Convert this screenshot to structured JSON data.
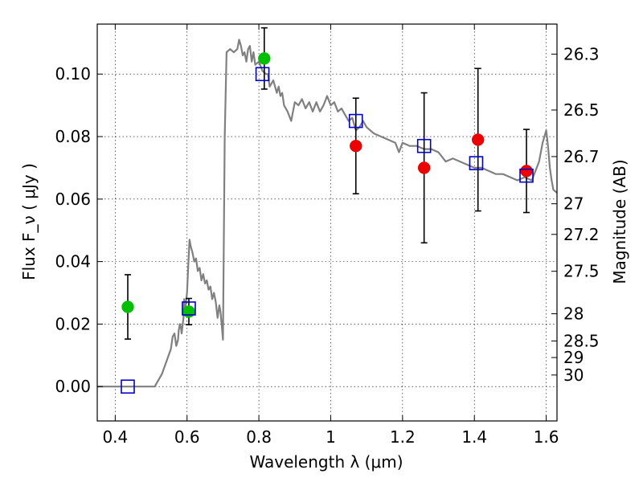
{
  "chart_data": {
    "type": "scatter",
    "xlabel": "Wavelength  λ (μm)",
    "ylabel": "Flux  F_ν  ( μJy )",
    "y2label": "Magnitude (AB)",
    "xlim": [
      0.35,
      1.63
    ],
    "ylim": [
      -0.011,
      0.116
    ],
    "x_ticks": [
      0.4,
      0.6,
      0.8,
      1.0,
      1.2,
      1.4,
      1.6
    ],
    "x_tick_labels": [
      "0.4",
      "0.6",
      "0.8",
      "1",
      "1.2",
      "1.4",
      "1.6"
    ],
    "y_ticks": [
      0.0,
      0.02,
      0.04,
      0.06,
      0.08,
      0.1
    ],
    "y_tick_labels": [
      "0.00",
      "0.02",
      "0.04",
      "0.06",
      "0.08",
      "0.10"
    ],
    "y2_ticks": [
      {
        "label": "26.3",
        "flux": 0.1064
      },
      {
        "label": "26.5",
        "flux": 0.0885
      },
      {
        "label": "26.7",
        "flux": 0.0736
      },
      {
        "label": "27",
        "flux": 0.0585
      },
      {
        "label": "27.2",
        "flux": 0.0487
      },
      {
        "label": "27.5",
        "flux": 0.0369
      },
      {
        "label": "28",
        "flux": 0.0233
      },
      {
        "label": "28.5",
        "flux": 0.0146
      },
      {
        "label": "29",
        "flux": 0.0093
      },
      {
        "label": "30",
        "flux": 0.0037
      }
    ],
    "grid": true,
    "colors": {
      "template": "#808080",
      "green_points": "#00c000",
      "red_points": "#ee0000",
      "model_squares": "#0000cc",
      "errorbars": "#000000"
    },
    "series": [
      {
        "kind": "template-spectrum",
        "x": [
          0.35,
          0.45,
          0.51,
          0.53,
          0.555,
          0.56,
          0.565,
          0.57,
          0.575,
          0.577,
          0.58,
          0.583,
          0.585,
          0.59,
          0.592,
          0.595,
          0.6,
          0.603,
          0.607,
          0.61,
          0.615,
          0.62,
          0.625,
          0.63,
          0.635,
          0.64,
          0.645,
          0.65,
          0.655,
          0.66,
          0.665,
          0.67,
          0.675,
          0.68,
          0.685,
          0.69,
          0.693,
          0.697,
          0.7,
          0.705,
          0.71,
          0.72,
          0.73,
          0.74,
          0.745,
          0.75,
          0.755,
          0.76,
          0.765,
          0.77,
          0.775,
          0.78,
          0.785,
          0.79,
          0.8,
          0.81,
          0.82,
          0.825,
          0.83,
          0.84,
          0.85,
          0.855,
          0.86,
          0.865,
          0.87,
          0.88,
          0.89,
          0.9,
          0.91,
          0.92,
          0.93,
          0.94,
          0.95,
          0.96,
          0.97,
          0.98,
          0.99,
          1.0,
          1.01,
          1.02,
          1.03,
          1.04,
          1.05,
          1.06,
          1.07,
          1.08,
          1.09,
          1.1,
          1.12,
          1.14,
          1.16,
          1.18,
          1.19,
          1.2,
          1.22,
          1.24,
          1.26,
          1.28,
          1.3,
          1.32,
          1.34,
          1.36,
          1.38,
          1.4,
          1.42,
          1.44,
          1.46,
          1.48,
          1.5,
          1.52,
          1.54,
          1.56,
          1.58,
          1.59,
          1.6,
          1.605,
          1.61,
          1.615,
          1.62,
          1.63
        ],
        "y": [
          0.0,
          0.0,
          0.0,
          0.004,
          0.012,
          0.016,
          0.017,
          0.013,
          0.015,
          0.018,
          0.02,
          0.019,
          0.017,
          0.022,
          0.028,
          0.025,
          0.03,
          0.038,
          0.047,
          0.045,
          0.043,
          0.04,
          0.041,
          0.037,
          0.038,
          0.034,
          0.036,
          0.033,
          0.034,
          0.031,
          0.032,
          0.028,
          0.03,
          0.027,
          0.022,
          0.026,
          0.024,
          0.019,
          0.015,
          0.08,
          0.107,
          0.108,
          0.107,
          0.108,
          0.111,
          0.109,
          0.106,
          0.107,
          0.104,
          0.108,
          0.109,
          0.104,
          0.107,
          0.103,
          0.104,
          0.101,
          0.1,
          0.1,
          0.096,
          0.098,
          0.094,
          0.096,
          0.093,
          0.094,
          0.09,
          0.088,
          0.085,
          0.091,
          0.09,
          0.092,
          0.089,
          0.091,
          0.088,
          0.091,
          0.088,
          0.09,
          0.093,
          0.09,
          0.091,
          0.088,
          0.089,
          0.087,
          0.085,
          0.086,
          0.082,
          0.083,
          0.085,
          0.083,
          0.081,
          0.08,
          0.079,
          0.078,
          0.075,
          0.078,
          0.077,
          0.077,
          0.076,
          0.076,
          0.075,
          0.072,
          0.073,
          0.072,
          0.071,
          0.07,
          0.07,
          0.069,
          0.068,
          0.068,
          0.067,
          0.066,
          0.067,
          0.066,
          0.072,
          0.078,
          0.082,
          0.077,
          0.07,
          0.066,
          0.063,
          0.062
        ]
      },
      {
        "kind": "points-green",
        "x": [
          0.435,
          0.605,
          0.815
        ],
        "y": [
          0.0255,
          0.024,
          0.105
        ],
        "err": [
          0.0103,
          0.0042,
          0.0098
        ]
      },
      {
        "kind": "points-red",
        "x": [
          1.07,
          1.26,
          1.41,
          1.545
        ],
        "y": [
          0.077,
          0.07,
          0.079,
          0.069
        ],
        "err": [
          0.0153,
          0.024,
          0.0228,
          0.0133
        ]
      },
      {
        "kind": "model-squares",
        "x": [
          0.435,
          0.605,
          0.81,
          1.07,
          1.26,
          1.405,
          1.545
        ],
        "y": [
          0.0,
          0.025,
          0.1,
          0.085,
          0.077,
          0.0715,
          0.0675
        ]
      }
    ]
  }
}
